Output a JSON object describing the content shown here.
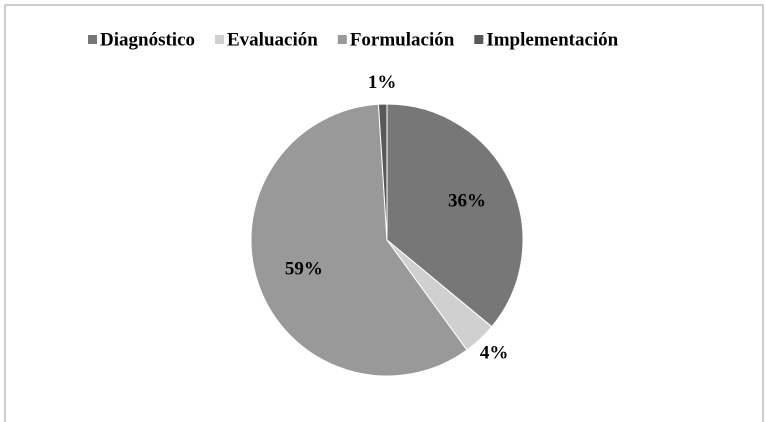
{
  "chart_data": {
    "type": "pie",
    "categories": [
      "Diagnóstico",
      "Evaluación",
      "Formulación",
      "Implementación"
    ],
    "values": [
      36,
      4,
      59,
      1
    ],
    "value_labels": [
      "36%",
      "4%",
      "59%",
      "1%"
    ],
    "colors": [
      "#777777",
      "#d0d0d0",
      "#999999",
      "#595959"
    ],
    "legend": "top"
  }
}
